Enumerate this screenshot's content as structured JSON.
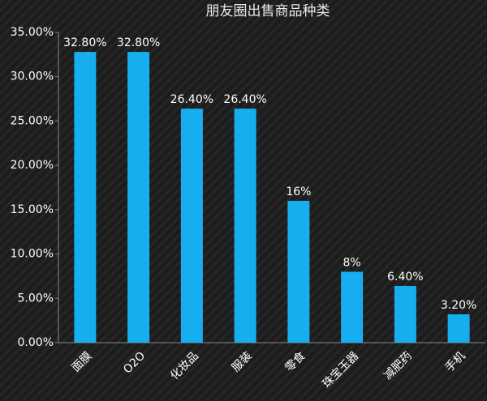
{
  "chart_data": {
    "type": "bar",
    "title": "朋友圈出售商品种类",
    "categories": [
      "面膜",
      "O2O",
      "化妆品",
      "服装",
      "零食",
      "珠宝玉器",
      "减肥药",
      "手机"
    ],
    "values": [
      32.8,
      32.8,
      26.4,
      26.4,
      16,
      8,
      6.4,
      3.2
    ],
    "value_labels": [
      "32.80%",
      "32.80%",
      "26.40%",
      "26.40%",
      "16%",
      "8%",
      "6.40%",
      "3.20%"
    ],
    "color": "#17aef0",
    "ylim": [
      0,
      35
    ],
    "yticks": [
      {
        "value": 0,
        "label": "0.00%"
      },
      {
        "value": 5,
        "label": "5.00%"
      },
      {
        "value": 10,
        "label": "10.00%"
      },
      {
        "value": 15,
        "label": "15.00%"
      },
      {
        "value": 20,
        "label": "20.00%"
      },
      {
        "value": 25,
        "label": "25.00%"
      },
      {
        "value": 30,
        "label": "30.00%"
      },
      {
        "value": 35,
        "label": "35.00%"
      }
    ]
  }
}
